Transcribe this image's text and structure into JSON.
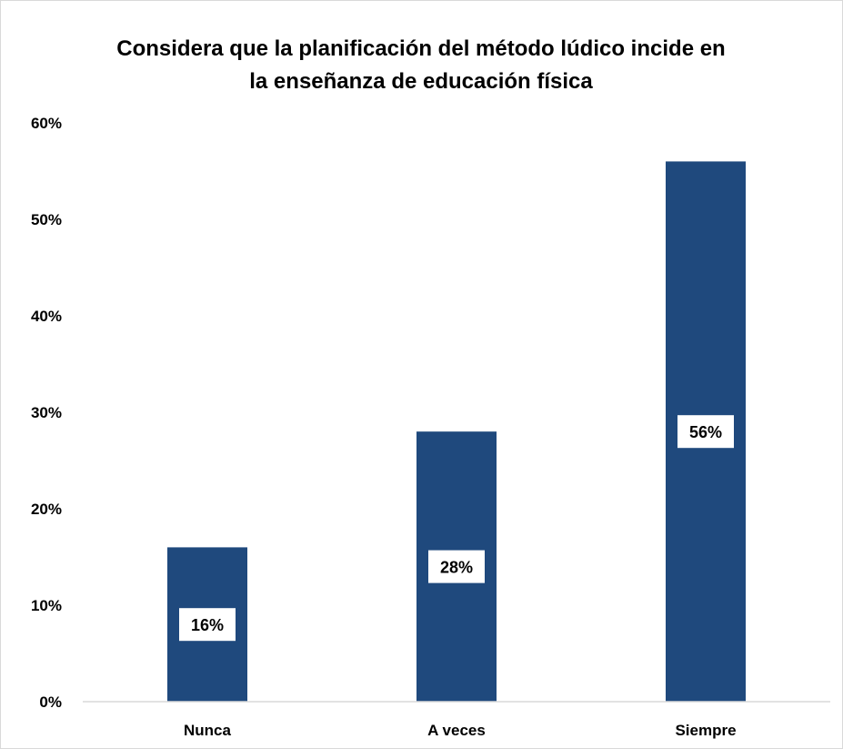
{
  "chart_data": {
    "type": "bar",
    "title": "Considera que la planificación del método  lúdico incide en la enseñanza de educación física",
    "title_lines": [
      "Considera que la planificación del método  lúdico incide en",
      "la enseñanza de educación física"
    ],
    "categories": [
      "Nunca",
      "A veces",
      "Siempre"
    ],
    "values": [
      0.16,
      0.28,
      0.56
    ],
    "data_labels": [
      "16%",
      "28%",
      "56%"
    ],
    "y_ticks": [
      0,
      0.1,
      0.2,
      0.3,
      0.4,
      0.5,
      0.6
    ],
    "y_tick_labels": [
      "0%",
      "10%",
      "20%",
      "30%",
      "40%",
      "50%",
      "60%"
    ],
    "ylim": [
      0,
      0.6
    ],
    "xlabel": "",
    "ylabel": "",
    "grid": false,
    "legend": "none",
    "bar_color": "#1f497d"
  }
}
